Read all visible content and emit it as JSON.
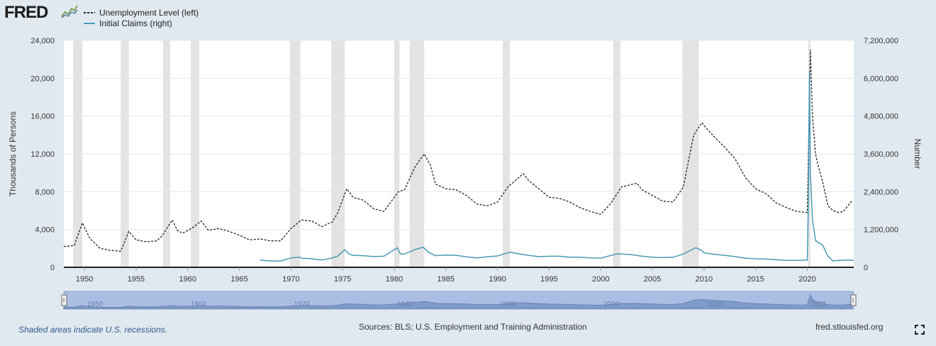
{
  "header": {
    "logo_text": "FRED",
    "legend": [
      {
        "label": "Unemployment Level (left)",
        "color": "#222222",
        "style": "dashed"
      },
      {
        "label": "Initial Claims (right)",
        "color": "#4a9ab5",
        "style": "solid"
      }
    ]
  },
  "footer": {
    "recession_note": "Shaded areas indicate U.S. recessions.",
    "sources": "Sources: BLS; U.S. Employment and Training Administration",
    "site": "fred.stlouisfed.org",
    "fullscreen_icon": "fullscreen-icon"
  },
  "chart_data": {
    "type": "line",
    "xlabel": "",
    "ylabel_left": "Thousands of Persons",
    "ylabel_right": "Number",
    "xlim": [
      1948,
      2024.5
    ],
    "ylim_left": [
      0,
      24000
    ],
    "ylim_right": [
      0,
      7200000
    ],
    "grid": true,
    "legend_position": "top-left",
    "x_ticks": [
      "1950",
      "1955",
      "1960",
      "1965",
      "1970",
      "1975",
      "1980",
      "1985",
      "1990",
      "1995",
      "2000",
      "2005",
      "2010",
      "2015",
      "2020"
    ],
    "y_ticks_left": [
      "0",
      "4,000",
      "8,000",
      "12,000",
      "16,000",
      "20,000",
      "24,000"
    ],
    "y_ticks_right": [
      "0",
      "1,200,000",
      "2,400,000",
      "3,600,000",
      "4,800,000",
      "6,000,000",
      "7,200,000"
    ],
    "recessions": [
      [
        1948.9,
        1949.8
      ],
      [
        1953.5,
        1954.3
      ],
      [
        1957.6,
        1958.3
      ],
      [
        1960.3,
        1961.1
      ],
      [
        1969.9,
        1970.9
      ],
      [
        1973.9,
        1975.2
      ],
      [
        1980.0,
        1980.5
      ],
      [
        1981.5,
        1982.9
      ],
      [
        1990.5,
        1991.2
      ],
      [
        2001.2,
        2001.9
      ],
      [
        2007.9,
        2009.5
      ],
      [
        2020.1,
        2020.3
      ]
    ],
    "series": [
      {
        "name": "Unemployment Level (left)",
        "axis": "left",
        "color": "#222222",
        "x": [
          1948,
          1949,
          1949.8,
          1950.5,
          1951.5,
          1952.5,
          1953.5,
          1954.3,
          1955,
          1956,
          1957,
          1957.5,
          1958.5,
          1959,
          1959.5,
          1960.5,
          1961.3,
          1962,
          1963,
          1964,
          1965,
          1966,
          1967,
          1968,
          1969,
          1970,
          1971,
          1972,
          1973,
          1974,
          1974.5,
          1975.4,
          1976,
          1977,
          1978,
          1979,
          1980.4,
          1981,
          1982,
          1982.9,
          1983.5,
          1984,
          1985,
          1986,
          1987,
          1988,
          1989,
          1990,
          1991,
          1992.5,
          1993,
          1994,
          1995,
          1996,
          1997,
          1998,
          1999,
          2000,
          2001,
          2002,
          2003.5,
          2004,
          2005,
          2006,
          2007,
          2008,
          2009,
          2009.8,
          2010,
          2011,
          2012,
          2013,
          2014,
          2015,
          2016,
          2017,
          2018,
          2019,
          2020.0,
          2020.3,
          2020.5,
          2020.8,
          2021,
          2021.5,
          2022,
          2022.5,
          2023,
          2023.5,
          2024.3
        ],
        "values": [
          2200,
          2300,
          4700,
          3100,
          2000,
          1800,
          1700,
          3800,
          2900,
          2700,
          2800,
          3300,
          5000,
          3900,
          3600,
          4200,
          4900,
          3900,
          4100,
          3800,
          3400,
          2900,
          3000,
          2800,
          2800,
          4100,
          5000,
          4900,
          4300,
          4800,
          5700,
          8300,
          7400,
          7100,
          6200,
          5900,
          8000,
          8200,
          10600,
          12000,
          10800,
          8800,
          8300,
          8200,
          7600,
          6700,
          6500,
          6900,
          8500,
          9900,
          9200,
          8300,
          7400,
          7300,
          6900,
          6300,
          5900,
          5600,
          6800,
          8500,
          8900,
          8200,
          7600,
          7000,
          6900,
          8500,
          14000,
          15300,
          15000,
          13800,
          12700,
          11500,
          9500,
          8300,
          7800,
          6800,
          6300,
          5900,
          5800,
          23000,
          16000,
          12000,
          11000,
          9000,
          6500,
          6000,
          5800,
          5900,
          7000
        ]
      },
      {
        "name": "Initial Claims (right)",
        "axis": "right",
        "color": "#4a9ab5",
        "x": [
          1967,
          1968,
          1969,
          1970,
          1970.8,
          1971,
          1972,
          1973,
          1974,
          1974.5,
          1975.2,
          1975.6,
          1976,
          1977,
          1978,
          1979,
          1980.3,
          1980.6,
          1981,
          1982,
          1982.8,
          1983.3,
          1984,
          1985,
          1986,
          1987,
          1988,
          1989,
          1990,
          1991.2,
          1992,
          1993,
          1994,
          1995,
          1996,
          1997,
          1998,
          1999,
          2000,
          2001.5,
          2002,
          2003,
          2004,
          2005,
          2006,
          2007,
          2008,
          2009.2,
          2009.8,
          2010,
          2011,
          2012,
          2013,
          2014,
          2015,
          2016,
          2017,
          2018,
          2019,
          2020.0,
          2020.1,
          2020.22,
          2020.3,
          2020.5,
          2020.8,
          2021,
          2021.5,
          2022,
          2022.5,
          2023,
          2024,
          2024.5
        ],
        "values": [
          230000,
          200000,
          200000,
          300000,
          320000,
          290000,
          270000,
          230000,
          300000,
          350000,
          560000,
          430000,
          380000,
          370000,
          340000,
          350000,
          620000,
          420000,
          420000,
          560000,
          640000,
          480000,
          370000,
          390000,
          380000,
          330000,
          300000,
          330000,
          360000,
          480000,
          430000,
          380000,
          340000,
          350000,
          350000,
          320000,
          320000,
          300000,
          290000,
          420000,
          420000,
          400000,
          350000,
          320000,
          310000,
          320000,
          420000,
          620000,
          530000,
          460000,
          410000,
          380000,
          340000,
          290000,
          270000,
          260000,
          240000,
          220000,
          220000,
          230000,
          2000000,
          6200000,
          3000000,
          1500000,
          850000,
          800000,
          700000,
          350000,
          200000,
          220000,
          230000,
          220000
        ]
      }
    ]
  }
}
